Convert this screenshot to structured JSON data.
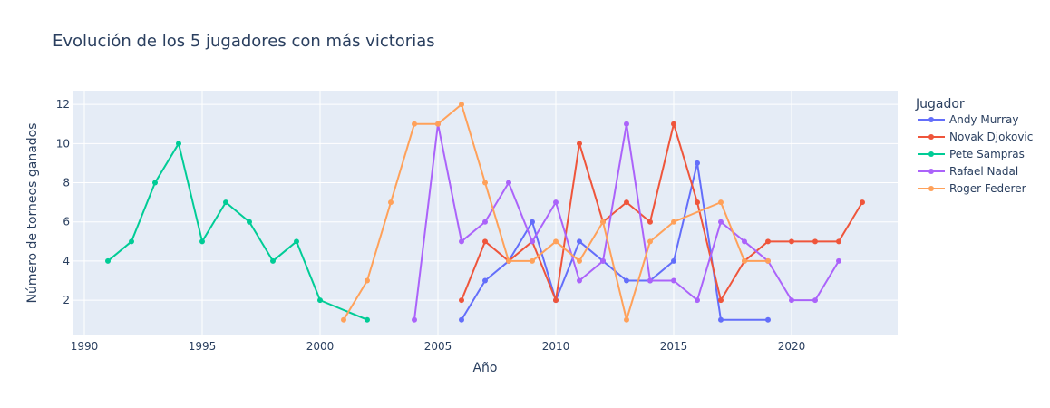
{
  "chart_data": {
    "type": "line",
    "title": "Evolución de los 5 jugadores con más victorias",
    "xlabel": "Año",
    "ylabel": "Número de torneos ganados",
    "xlim": [
      1989.5,
      2024.5
    ],
    "ylim": [
      0.2,
      12.7
    ],
    "xticks": [
      1990,
      1995,
      2000,
      2005,
      2010,
      2015,
      2020
    ],
    "yticks": [
      2,
      4,
      6,
      8,
      10,
      12
    ],
    "grid": true,
    "legend_title": "Jugador",
    "legend_position": "right",
    "series": [
      {
        "name": "Andy Murray",
        "color": "#636efa",
        "x": [
          2006,
          2007,
          2008,
          2009,
          2010,
          2011,
          2012,
          2013,
          2014,
          2015,
          2016,
          2017,
          2019
        ],
        "y": [
          1,
          3,
          4,
          6,
          2,
          5,
          4,
          3,
          3,
          4,
          9,
          1,
          1
        ]
      },
      {
        "name": "Novak Djokovic",
        "color": "#ef553b",
        "x": [
          2006,
          2007,
          2008,
          2009,
          2010,
          2011,
          2012,
          2013,
          2014,
          2015,
          2016,
          2017,
          2018,
          2019,
          2020,
          2021,
          2022,
          2023
        ],
        "y": [
          2,
          5,
          4,
          5,
          2,
          10,
          6,
          7,
          6,
          11,
          7,
          2,
          4,
          5,
          5,
          5,
          5,
          7
        ]
      },
      {
        "name": "Pete Sampras",
        "color": "#00cc96",
        "x": [
          1991,
          1992,
          1993,
          1994,
          1995,
          1996,
          1997,
          1998,
          1999,
          2000,
          2002
        ],
        "y": [
          4,
          5,
          8,
          10,
          5,
          7,
          6,
          4,
          5,
          2,
          1
        ]
      },
      {
        "name": "Rafael Nadal",
        "color": "#ab63fa",
        "x": [
          2004,
          2005,
          2006,
          2007,
          2008,
          2009,
          2010,
          2011,
          2012,
          2013,
          2014,
          2015,
          2016,
          2017,
          2018,
          2019,
          2020,
          2021,
          2022
        ],
        "y": [
          1,
          11,
          5,
          6,
          8,
          5,
          7,
          3,
          4,
          11,
          3,
          3,
          2,
          6,
          5,
          4,
          2,
          2,
          4
        ]
      },
      {
        "name": "Roger Federer",
        "color": "#ffa15a",
        "x": [
          2001,
          2002,
          2003,
          2004,
          2005,
          2006,
          2007,
          2008,
          2009,
          2010,
          2011,
          2012,
          2013,
          2014,
          2015,
          2017,
          2018,
          2019
        ],
        "y": [
          1,
          3,
          7,
          11,
          11,
          12,
          8,
          4,
          4,
          5,
          4,
          6,
          1,
          5,
          6,
          7,
          4,
          4
        ]
      }
    ]
  }
}
